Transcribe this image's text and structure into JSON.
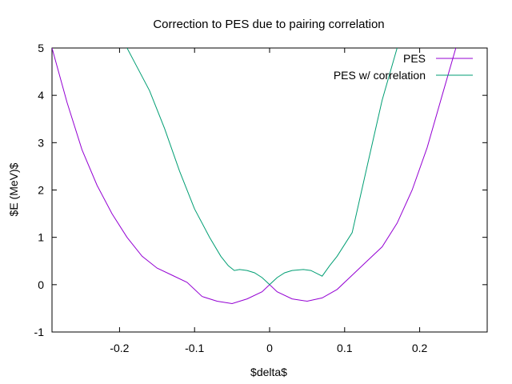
{
  "chart_data": {
    "type": "line",
    "title": "Correction to PES due to pairing correlation",
    "xlabel": "$delta$",
    "ylabel": "$E (MeV)$",
    "xlim": [
      -0.29,
      0.29
    ],
    "ylim": [
      -1,
      5
    ],
    "xticks": [
      -0.2,
      -0.1,
      0,
      0.1,
      0.2
    ],
    "yticks": [
      -1,
      0,
      1,
      2,
      3,
      4,
      5
    ],
    "xtick_labels": [
      "-0.2",
      "-0.1",
      "0",
      "0.1",
      "0.2"
    ],
    "ytick_labels": [
      "-1",
      "0",
      "1",
      "2",
      "3",
      "4",
      "5"
    ],
    "grid": false,
    "legend_position": "top-right",
    "series": [
      {
        "name": "PES",
        "color": "#9400d3",
        "x": [
          -0.29,
          -0.27,
          -0.25,
          -0.23,
          -0.21,
          -0.19,
          -0.17,
          -0.15,
          -0.13,
          -0.11,
          -0.09,
          -0.07,
          -0.05,
          -0.03,
          -0.01,
          0.0,
          0.01,
          0.03,
          0.05,
          0.07,
          0.09,
          0.11,
          0.13,
          0.15,
          0.17,
          0.19,
          0.21,
          0.23,
          0.25
        ],
        "y": [
          5.0,
          3.85,
          2.85,
          2.1,
          1.5,
          1.0,
          0.6,
          0.35,
          0.2,
          0.05,
          -0.25,
          -0.35,
          -0.4,
          -0.3,
          -0.15,
          0.0,
          -0.15,
          -0.3,
          -0.35,
          -0.28,
          -0.1,
          0.2,
          0.5,
          0.8,
          1.3,
          2.0,
          2.9,
          4.0,
          5.1
        ]
      },
      {
        "name": "PES w/ correlation",
        "color": "#009e73",
        "x": [
          -0.19,
          -0.18,
          -0.16,
          -0.14,
          -0.12,
          -0.1,
          -0.08,
          -0.065,
          -0.055,
          -0.047,
          -0.04,
          -0.03,
          -0.02,
          -0.01,
          0.0,
          0.01,
          0.02,
          0.03,
          0.045,
          0.055,
          0.065,
          0.07,
          0.08,
          0.09,
          0.11,
          0.13,
          0.15,
          0.17,
          0.18
        ],
        "y": [
          5.0,
          4.7,
          4.1,
          3.3,
          2.4,
          1.6,
          1.0,
          0.6,
          0.4,
          0.3,
          0.32,
          0.3,
          0.25,
          0.15,
          0.0,
          0.15,
          0.25,
          0.3,
          0.32,
          0.3,
          0.22,
          0.18,
          0.4,
          0.6,
          1.1,
          2.5,
          3.9,
          5.0,
          5.2
        ]
      }
    ]
  }
}
